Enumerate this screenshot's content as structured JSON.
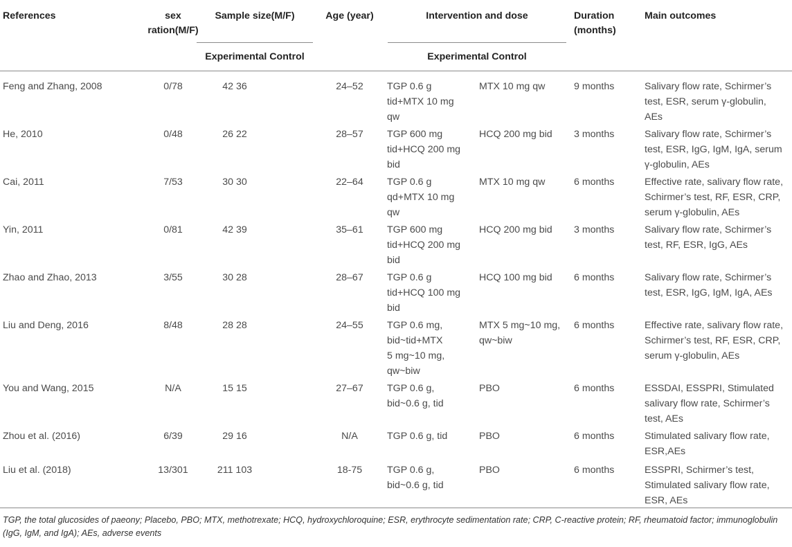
{
  "headers": {
    "references": "References",
    "sex_ratio": "sex\nration(M/F)",
    "sample_size": "Sample size(M/F)",
    "sample_sub": "Experimental Control",
    "age": "Age (year)",
    "intervention": "Intervention and dose",
    "intervention_sub": "Experimental Control",
    "duration": "Duration\n(months)",
    "outcomes": "Main outcomes"
  },
  "rows": [
    {
      "ref": "Feng and Zhang, 2008",
      "sex": "0/78",
      "sample": "42 36",
      "age": "24–52",
      "exp": "TGP 0.6 g\ntid+MTX 10 mg\nqw",
      "ctrl": "MTX 10 mg qw",
      "duration": "9 months",
      "outcomes": "Salivary flow rate, Schirmer’s\ntest, ESR, serum γ-globulin,\nAEs"
    },
    {
      "ref": "He, 2010",
      "sex": "0/48",
      "sample": "26 22",
      "age": "28–57",
      "exp": "TGP 600 mg\ntid+HCQ 200 mg\nbid",
      "ctrl": "HCQ 200 mg bid",
      "duration": "3 months",
      "outcomes": "Salivary flow rate, Schirmer’s\ntest, ESR, IgG, IgM, IgA, serum\nγ-globulin, AEs"
    },
    {
      "ref": "Cai, 2011",
      "sex": "7/53",
      "sample": "30 30",
      "age": "22–64",
      "exp": "TGP 0.6 g\nqd+MTX 10 mg\nqw",
      "ctrl": "MTX 10 mg qw",
      "duration": "6 months",
      "outcomes": "Effective rate, salivary flow rate,\nSchirmer’s test, RF, ESR, CRP,\nserum γ-globulin, AEs"
    },
    {
      "ref": "Yin, 2011",
      "sex": "0/81",
      "sample": "42 39",
      "age": "35–61",
      "exp": "TGP 600 mg\ntid+HCQ 200 mg\nbid",
      "ctrl": "HCQ 200 mg bid",
      "duration": "3 months",
      "outcomes": "Salivary flow rate, Schirmer’s\ntest, RF, ESR, IgG, AEs"
    },
    {
      "ref": "Zhao and Zhao, 2013",
      "sex": "3/55",
      "sample": "30 28",
      "age": "28–67",
      "exp": "TGP 0.6 g\ntid+HCQ 100 mg\nbid",
      "ctrl": "HCQ 100 mg bid",
      "duration": "6 months",
      "outcomes": "Salivary flow rate, Schirmer’s\ntest, ESR, IgG, IgM, IgA, AEs"
    },
    {
      "ref": "Liu and Deng, 2016",
      "sex": "8/48",
      "sample": "28 28",
      "age": "24–55",
      "exp": "TGP 0.6 mg,\nbid~tid+MTX\n5 mg~10 mg,\nqw~biw",
      "ctrl": "MTX 5 mg~10 mg,\nqw~biw",
      "duration": "6 months",
      "outcomes": "Effective rate, salivary flow rate,\nSchirmer’s test, RF, ESR, CRP,\nserum γ-globulin, AEs"
    },
    {
      "ref": "You and Wang, 2015",
      "sex": "N/A",
      "sample": "15 15",
      "age": "27–67",
      "exp": "TGP 0.6 g,\nbid~0.6 g, tid",
      "ctrl": "PBO",
      "duration": "6 months",
      "outcomes": "ESSDAI, ESSPRI, Stimulated\nsalivary flow rate, Schirmer’s\ntest, AEs"
    },
    {
      "ref": "Zhou et al. (2016)",
      "sex": "6/39",
      "sample": "29 16",
      "age": "N/A",
      "exp": "TGP 0.6 g, tid",
      "ctrl": "PBO",
      "duration": "6 months",
      "outcomes": "Stimulated salivary flow rate,\nESR,AEs"
    },
    {
      "ref": "Liu et al. (2018)",
      "sex": "13/301",
      "sample": "211 103",
      "age": "18-75",
      "exp": "TGP 0.6 g,\nbid~0.6 g, tid",
      "ctrl": "PBO",
      "duration": "6 months",
      "outcomes": "ESSPRI, Schirmer’s test,\nStimulated salivary flow rate,\nESR, AEs"
    }
  ],
  "footnote": "TGP, the total glucosides of paeony; Placebo, PBO; MTX, methotrexate; HCQ, hydroxychloroquine; ESR, erythrocyte sedimentation rate; CRP, C-reactive protein; RF, rheumatoid factor; immunoglobulin (IgG, IgM, and IgA); AEs, adverse events"
}
